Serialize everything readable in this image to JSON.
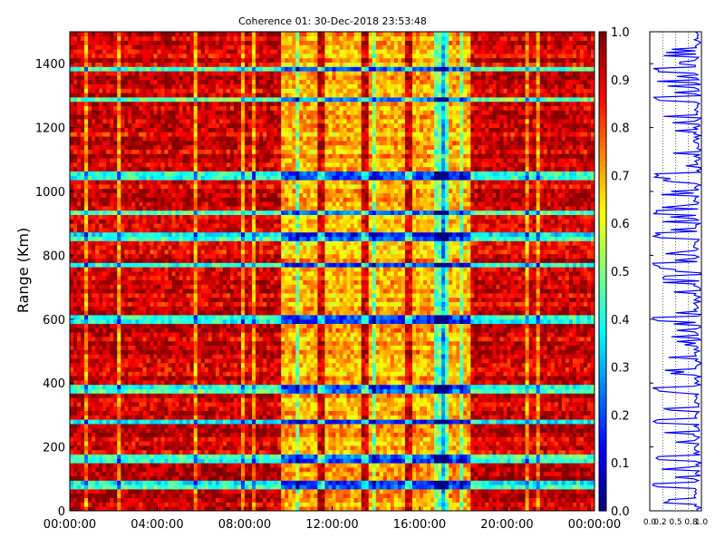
{
  "chart_data": [
    {
      "type": "heatmap",
      "title": "Coherence 01: 30-Dec-2018 23:53:48",
      "xlabel": "",
      "ylabel": "Range (Km)",
      "xlim": [
        "00:00:00",
        "00:00:00"
      ],
      "x_ticks": [
        "00:00:00",
        "04:00:00",
        "08:00:00",
        "12:00:00",
        "16:00:00",
        "20:00:00",
        "00:00:00"
      ],
      "ylim": [
        0,
        1500
      ],
      "y_ticks": [
        0,
        200,
        400,
        600,
        800,
        1000,
        1200,
        1400
      ],
      "colormap": "jet",
      "colorbar": {
        "range": [
          0.0,
          1.0
        ],
        "ticks": [
          "0.0",
          "0.1",
          "0.2",
          "0.3",
          "0.4",
          "0.5",
          "0.6",
          "0.7",
          "0.8",
          "0.9",
          "1.0"
        ]
      },
      "values_description_bands": {
        "time_hours_low_coherence": [
          10.5,
          12.5,
          14.5,
          16.5,
          17.5
        ],
        "range_km_low_coherence": [
          80,
          165,
          280,
          380,
          600,
          770,
          860,
          935,
          1050,
          1290,
          1380
        ]
      }
    },
    {
      "type": "line",
      "title": "",
      "xlabel": "",
      "ylabel": "",
      "xlim": [
        0,
        1.0
      ],
      "x_ticks": [
        "0.0",
        "0.2",
        "0.5",
        "0.8",
        "1.0"
      ],
      "ylim": [
        0,
        1500
      ],
      "grid": true,
      "series": [
        {
          "color": "#0000ff"
        }
      ]
    }
  ]
}
